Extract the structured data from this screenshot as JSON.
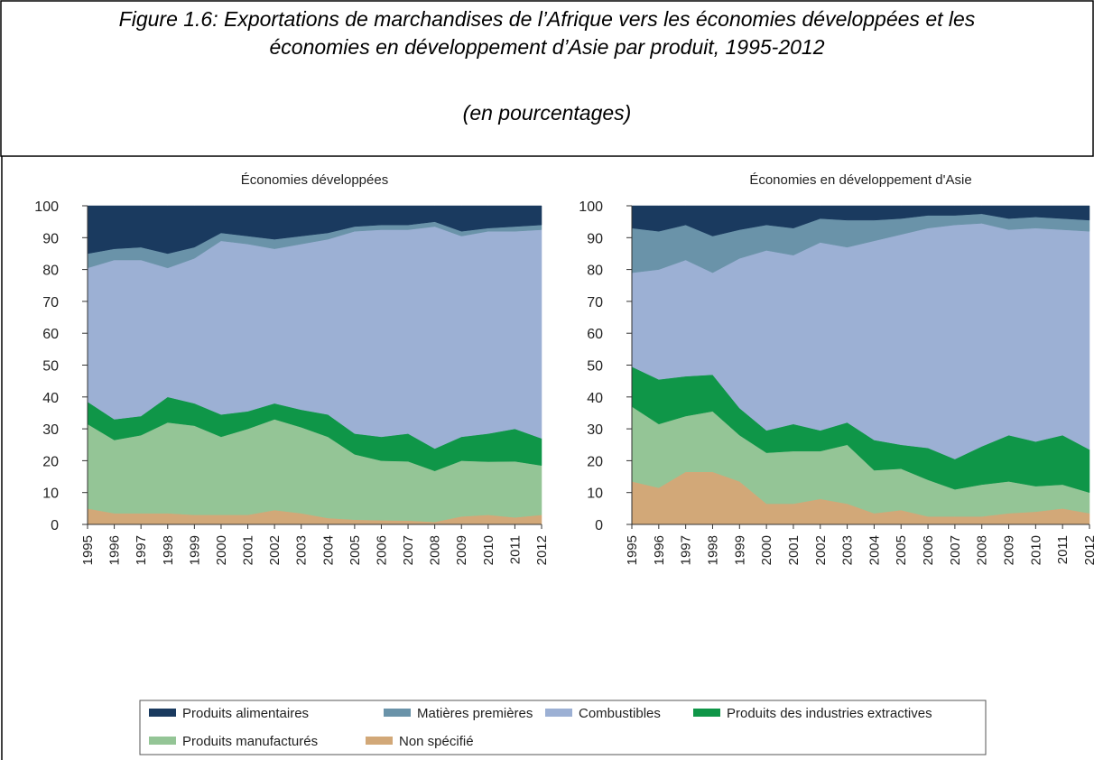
{
  "title": "Figure 1.6: Exportations de marchandises de l’Afrique vers les économies développées et les économies en développement d’Asie par produit, 1995-2012",
  "subtitle": "(en pourcentages)",
  "chart_data": [
    {
      "type": "area",
      "title": "Économies développées",
      "categories": [
        "1995",
        "1996",
        "1997",
        "1998",
        "1999",
        "2000",
        "2001",
        "2002",
        "2003",
        "2004",
        "2005",
        "2006",
        "2007",
        "2008",
        "2009",
        "2010",
        "2011",
        "2012"
      ],
      "ylim": [
        0,
        100
      ],
      "yticks": [
        0,
        10,
        20,
        30,
        40,
        50,
        60,
        70,
        80,
        90,
        100
      ],
      "series": [
        {
          "name": "Non spécifié",
          "color": "#d2a878",
          "values": [
            5,
            3.5,
            3.5,
            3.5,
            3,
            3,
            3,
            4.5,
            3.5,
            2,
            1.5,
            1.3,
            1.2,
            0.8,
            2.5,
            3,
            2.2,
            3
          ]
        },
        {
          "name": "Produits manufacturés",
          "color": "#94c596",
          "values": [
            26.5,
            23,
            24.5,
            28.5,
            28,
            24.5,
            27,
            28.5,
            27,
            25.5,
            20.5,
            18.7,
            18.6,
            16,
            17.5,
            16.7,
            17.6,
            15.5
          ]
        },
        {
          "name": "Produits des industries extractives",
          "color": "#0f9648",
          "values": [
            7,
            6.5,
            6,
            8,
            7,
            7,
            5.5,
            5,
            5.5,
            7,
            6.5,
            7.5,
            8.7,
            7,
            7.5,
            8.8,
            10.2,
            8.5
          ]
        },
        {
          "name": "Combustibles",
          "color": "#9cb0d4",
          "values": [
            42,
            50,
            49,
            40.5,
            45.5,
            54.5,
            52.5,
            48.5,
            52,
            55,
            63.5,
            65,
            64,
            69.7,
            63,
            63.5,
            62,
            65.5
          ]
        },
        {
          "name": "Matières premières",
          "color": "#6a93a9",
          "values": [
            4.5,
            3.5,
            4,
            4.5,
            3.5,
            2.5,
            2.5,
            3,
            2.5,
            2,
            1.5,
            1.5,
            1.5,
            1.5,
            1.5,
            1,
            1.5,
            1.5
          ]
        },
        {
          "name": "Produits alimentaires",
          "color": "#1a3a5f",
          "values": [
            15,
            13.5,
            13,
            15,
            13,
            8.5,
            9.5,
            10.5,
            9.5,
            8.5,
            6.5,
            6,
            6,
            5,
            8,
            7,
            6.5,
            6
          ]
        }
      ]
    },
    {
      "type": "area",
      "title": "Économies en développement d'Asie",
      "categories": [
        "1995",
        "1996",
        "1997",
        "1998",
        "1999",
        "2000",
        "2001",
        "2002",
        "2003",
        "2004",
        "2005",
        "2006",
        "2007",
        "2008",
        "2009",
        "2010",
        "2011",
        "2012"
      ],
      "ylim": [
        0,
        100
      ],
      "yticks": [
        0,
        10,
        20,
        30,
        40,
        50,
        60,
        70,
        80,
        90,
        100
      ],
      "series": [
        {
          "name": "Non spécifié",
          "color": "#d2a878",
          "values": [
            13.5,
            11.5,
            16.5,
            16.5,
            13.5,
            6.5,
            6.5,
            8,
            6.5,
            3.5,
            4.5,
            2.5,
            2.5,
            2.5,
            3.5,
            4,
            5,
            3.5
          ]
        },
        {
          "name": "Produits manufacturés",
          "color": "#94c596",
          "values": [
            23.5,
            20,
            17.5,
            19,
            14.5,
            16,
            16.5,
            15,
            18.5,
            13.5,
            13,
            11.5,
            8.5,
            10,
            10,
            8,
            7.5,
            6.5
          ]
        },
        {
          "name": "Produits des industries extractives",
          "color": "#0f9648",
          "values": [
            12.5,
            14,
            12.5,
            11.5,
            8.5,
            7,
            8.5,
            6.5,
            7,
            9.5,
            7.5,
            10,
            9.5,
            12,
            14.5,
            14,
            15.5,
            13.5
          ]
        },
        {
          "name": "Combustibles",
          "color": "#9cb0d4",
          "values": [
            29.5,
            34.5,
            36.5,
            32,
            47,
            56.5,
            53,
            59,
            55,
            62.5,
            66,
            69,
            73.5,
            70,
            64.5,
            67,
            64.5,
            68.5
          ]
        },
        {
          "name": "Matières premières",
          "color": "#6a93a9",
          "values": [
            14,
            12,
            11,
            11.5,
            9,
            8,
            8.5,
            7.5,
            8.5,
            6.5,
            5,
            4,
            3,
            3,
            3.5,
            3.5,
            3.5,
            3.5
          ]
        },
        {
          "name": "Produits alimentaires",
          "color": "#1a3a5f",
          "values": [
            7,
            8,
            6,
            9.5,
            7.5,
            6,
            7,
            4,
            4.5,
            4.5,
            4,
            3,
            3,
            2.5,
            4,
            3.5,
            4,
            4.5
          ]
        }
      ]
    }
  ]
}
